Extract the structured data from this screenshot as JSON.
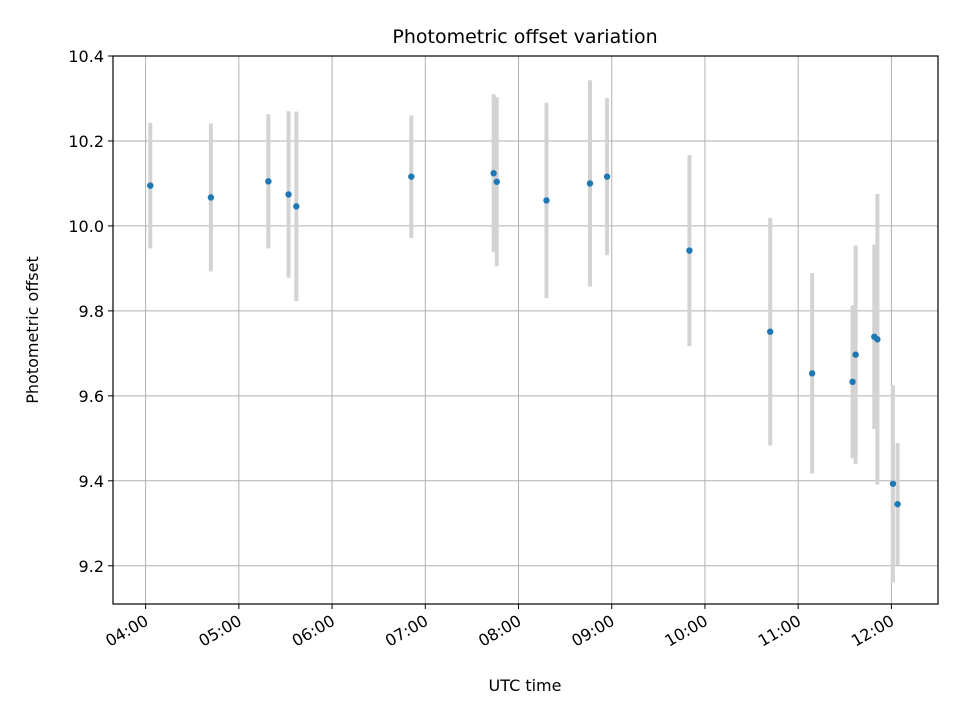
{
  "chart_data": {
    "type": "scatter",
    "title": "Photometric offset variation",
    "xlabel": "UTC time",
    "ylabel": "Photometric offset",
    "xlim": [
      "03:39",
      "12:30"
    ],
    "ylim": [
      9.11,
      10.4
    ],
    "x_ticks": [
      "04:00",
      "05:00",
      "06:00",
      "07:00",
      "08:00",
      "09:00",
      "10:00",
      "11:00",
      "12:00"
    ],
    "y_ticks": [
      9.2,
      9.4,
      9.6,
      9.8,
      10.0,
      10.2,
      10.4
    ],
    "y_tick_labels": [
      "9.2",
      "9.4",
      "9.6",
      "9.8",
      "10.0",
      "10.2",
      "10.4"
    ],
    "grid": true,
    "marker_color": "#1f77b4",
    "errorbar_color": "#d3d3d3",
    "points": [
      {
        "time": "04:03",
        "y": 10.095,
        "low": 9.947,
        "high": 10.243
      },
      {
        "time": "04:42",
        "y": 10.067,
        "low": 9.893,
        "high": 10.241
      },
      {
        "time": "05:19",
        "y": 10.105,
        "low": 9.947,
        "high": 10.263
      },
      {
        "time": "05:32",
        "y": 10.074,
        "low": 9.878,
        "high": 10.27
      },
      {
        "time": "05:37",
        "y": 10.046,
        "low": 9.823,
        "high": 10.269
      },
      {
        "time": "06:51",
        "y": 10.116,
        "low": 9.972,
        "high": 10.26
      },
      {
        "time": "07:44",
        "y": 10.124,
        "low": 9.938,
        "high": 10.31
      },
      {
        "time": "07:46",
        "y": 10.104,
        "low": 9.905,
        "high": 10.303
      },
      {
        "time": "08:18",
        "y": 10.06,
        "low": 9.83,
        "high": 10.29
      },
      {
        "time": "08:46",
        "y": 10.1,
        "low": 9.857,
        "high": 10.343
      },
      {
        "time": "08:57",
        "y": 10.116,
        "low": 9.931,
        "high": 10.301
      },
      {
        "time": "09:50",
        "y": 9.942,
        "low": 9.717,
        "high": 10.167
      },
      {
        "time": "10:42",
        "y": 9.751,
        "low": 9.483,
        "high": 10.019
      },
      {
        "time": "11:09",
        "y": 9.653,
        "low": 9.417,
        "high": 9.889
      },
      {
        "time": "11:35",
        "y": 9.633,
        "low": 9.453,
        "high": 9.813
      },
      {
        "time": "11:37",
        "y": 9.697,
        "low": 9.44,
        "high": 9.954
      },
      {
        "time": "11:49",
        "y": 9.739,
        "low": 9.522,
        "high": 9.956
      },
      {
        "time": "11:51",
        "y": 9.733,
        "low": 9.391,
        "high": 10.075
      },
      {
        "time": "12:01",
        "y": 9.393,
        "low": 9.161,
        "high": 9.625
      },
      {
        "time": "12:04",
        "y": 9.345,
        "low": 9.201,
        "high": 9.489
      }
    ]
  }
}
